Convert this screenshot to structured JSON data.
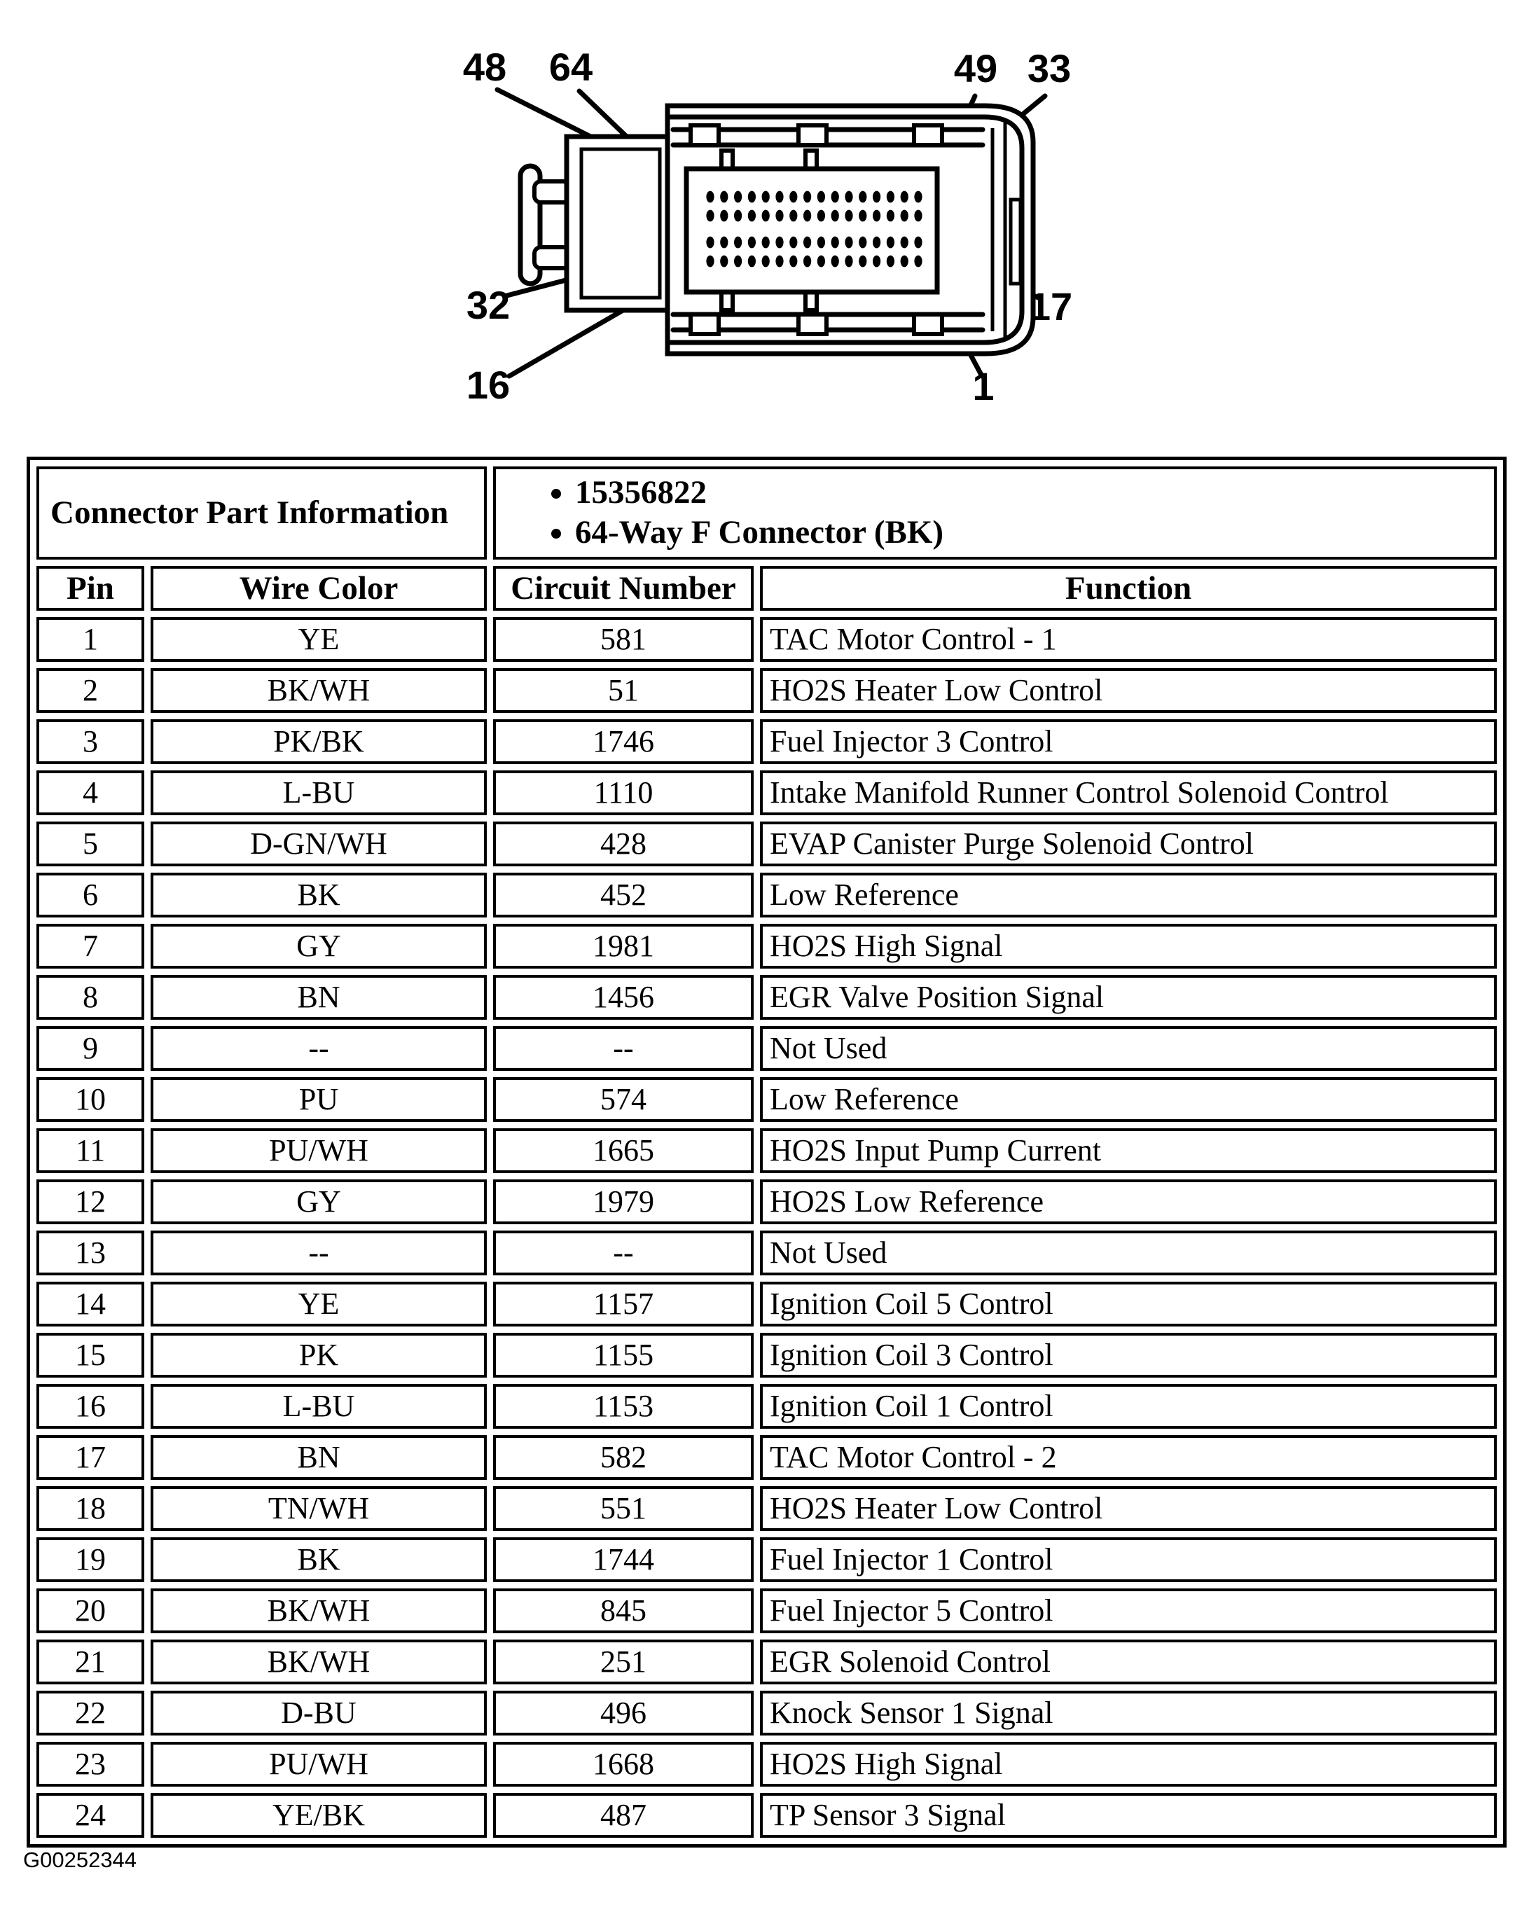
{
  "figure": {
    "pin_labels": [
      "48",
      "64",
      "49",
      "33",
      "32",
      "16",
      "17",
      "1"
    ],
    "pin_rows": 4,
    "pins_per_row": 16
  },
  "table": {
    "part_info": {
      "label": "Connector Part Information",
      "items": [
        "15356822",
        "64-Way F Connector (BK)"
      ]
    },
    "columns": [
      "Pin",
      "Wire Color",
      "Circuit Number",
      "Function"
    ],
    "rows": [
      {
        "pin": "1",
        "wire_color": "YE",
        "circuit": "581",
        "function": "TAC Motor Control - 1"
      },
      {
        "pin": "2",
        "wire_color": "BK/WH",
        "circuit": "51",
        "function": "HO2S Heater Low Control"
      },
      {
        "pin": "3",
        "wire_color": "PK/BK",
        "circuit": "1746",
        "function": "Fuel Injector 3 Control"
      },
      {
        "pin": "4",
        "wire_color": "L-BU",
        "circuit": "1110",
        "function": "Intake Manifold Runner Control Solenoid Control"
      },
      {
        "pin": "5",
        "wire_color": "D-GN/WH",
        "circuit": "428",
        "function": "EVAP Canister Purge Solenoid Control"
      },
      {
        "pin": "6",
        "wire_color": "BK",
        "circuit": "452",
        "function": "Low Reference"
      },
      {
        "pin": "7",
        "wire_color": "GY",
        "circuit": "1981",
        "function": "HO2S High Signal"
      },
      {
        "pin": "8",
        "wire_color": "BN",
        "circuit": "1456",
        "function": "EGR Valve Position Signal"
      },
      {
        "pin": "9",
        "wire_color": "--",
        "circuit": "--",
        "function": "Not Used"
      },
      {
        "pin": "10",
        "wire_color": "PU",
        "circuit": "574",
        "function": "Low Reference"
      },
      {
        "pin": "11",
        "wire_color": "PU/WH",
        "circuit": "1665",
        "function": "HO2S Input Pump Current"
      },
      {
        "pin": "12",
        "wire_color": "GY",
        "circuit": "1979",
        "function": "HO2S Low Reference"
      },
      {
        "pin": "13",
        "wire_color": "--",
        "circuit": "--",
        "function": "Not Used"
      },
      {
        "pin": "14",
        "wire_color": "YE",
        "circuit": "1157",
        "function": "Ignition Coil 5 Control"
      },
      {
        "pin": "15",
        "wire_color": "PK",
        "circuit": "1155",
        "function": "Ignition Coil 3 Control"
      },
      {
        "pin": "16",
        "wire_color": "L-BU",
        "circuit": "1153",
        "function": "Ignition Coil 1 Control"
      },
      {
        "pin": "17",
        "wire_color": "BN",
        "circuit": "582",
        "function": "TAC Motor Control - 2"
      },
      {
        "pin": "18",
        "wire_color": "TN/WH",
        "circuit": "551",
        "function": "HO2S Heater Low Control"
      },
      {
        "pin": "19",
        "wire_color": "BK",
        "circuit": "1744",
        "function": "Fuel Injector 1 Control"
      },
      {
        "pin": "20",
        "wire_color": "BK/WH",
        "circuit": "845",
        "function": "Fuel Injector 5 Control"
      },
      {
        "pin": "21",
        "wire_color": "BK/WH",
        "circuit": "251",
        "function": "EGR Solenoid Control"
      },
      {
        "pin": "22",
        "wire_color": "D-BU",
        "circuit": "496",
        "function": "Knock Sensor 1 Signal"
      },
      {
        "pin": "23",
        "wire_color": "PU/WH",
        "circuit": "1668",
        "function": "HO2S High Signal"
      },
      {
        "pin": "24",
        "wire_color": "YE/BK",
        "circuit": "487",
        "function": "TP Sensor 3 Signal"
      }
    ]
  },
  "footer": {
    "figure_id": "G00252344"
  }
}
